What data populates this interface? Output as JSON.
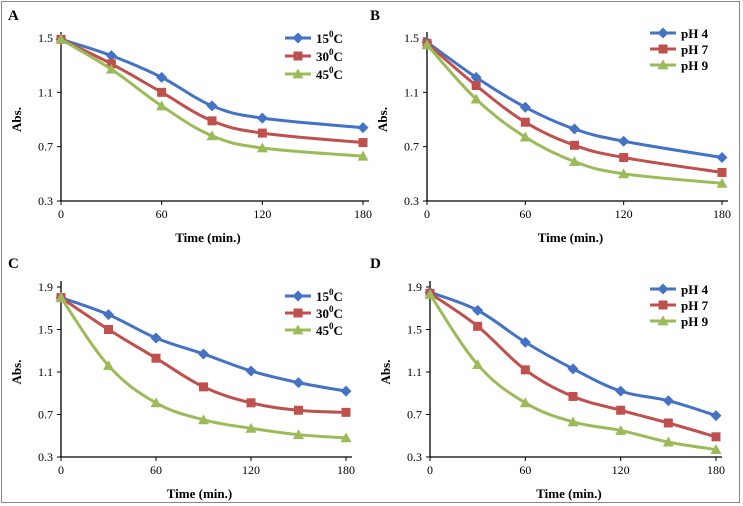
{
  "chart_data": [
    {
      "type": "line",
      "panel_label": "A",
      "xlabel": "Time (min.)",
      "ylabel": "Abs.",
      "x": [
        0,
        30,
        60,
        90,
        120,
        180
      ],
      "xticks": [
        "0",
        "60",
        "120",
        "180"
      ],
      "xlim": [
        0,
        180
      ],
      "yticks": [
        "0.3",
        "0.7",
        "1.1",
        "1.5"
      ],
      "ylim": [
        0.3,
        1.5
      ],
      "legend_placement": "top-right",
      "series": [
        {
          "name": "15",
          "unit": "C",
          "superscript": "0",
          "color": "#4472C4",
          "marker": "diamond",
          "values": [
            1.49,
            1.37,
            1.21,
            1.0,
            0.91,
            0.84
          ]
        },
        {
          "name": "30",
          "unit": "C",
          "superscript": "0",
          "color": "#C0504D",
          "marker": "square",
          "values": [
            1.49,
            1.31,
            1.1,
            0.89,
            0.8,
            0.73
          ]
        },
        {
          "name": "45",
          "unit": "C",
          "superscript": "0",
          "color": "#9BBB59",
          "marker": "triangle",
          "values": [
            1.49,
            1.27,
            1.0,
            0.78,
            0.69,
            0.63
          ]
        }
      ]
    },
    {
      "type": "line",
      "panel_label": "B",
      "xlabel": "Time (min.)",
      "ylabel": "Abs.",
      "x": [
        0,
        30,
        60,
        90,
        120,
        180
      ],
      "xticks": [
        "0",
        "60",
        "120",
        "180"
      ],
      "xlim": [
        0,
        180
      ],
      "yticks": [
        "0.3",
        "0.7",
        "1.1",
        "1.5"
      ],
      "ylim": [
        0.3,
        1.5
      ],
      "legend_placement": "top-right",
      "series": [
        {
          "name": "pH 4",
          "color": "#4472C4",
          "marker": "diamond",
          "values": [
            1.47,
            1.21,
            0.99,
            0.83,
            0.74,
            0.62
          ]
        },
        {
          "name": "pH 7",
          "color": "#C0504D",
          "marker": "square",
          "values": [
            1.46,
            1.15,
            0.88,
            0.71,
            0.62,
            0.51
          ]
        },
        {
          "name": "pH 9",
          "color": "#9BBB59",
          "marker": "triangle",
          "values": [
            1.45,
            1.05,
            0.77,
            0.59,
            0.5,
            0.43
          ]
        }
      ]
    },
    {
      "type": "line",
      "panel_label": "C",
      "xlabel": "Time (min.)",
      "ylabel": "Abs.",
      "x": [
        0,
        30,
        60,
        90,
        120,
        150,
        180
      ],
      "xticks": [
        "0",
        "60",
        "120",
        "180"
      ],
      "xlim": [
        0,
        180
      ],
      "yticks": [
        "0.3",
        "0.7",
        "1.1",
        "1.5",
        "1.9"
      ],
      "ylim": [
        0.3,
        1.9
      ],
      "legend_placement": "top-right",
      "series": [
        {
          "name": "15",
          "unit": "C",
          "superscript": "0",
          "color": "#4472C4",
          "marker": "diamond",
          "values": [
            1.8,
            1.64,
            1.42,
            1.27,
            1.11,
            1.0,
            0.92
          ]
        },
        {
          "name": "30",
          "unit": "C",
          "superscript": "0",
          "color": "#C0504D",
          "marker": "square",
          "values": [
            1.8,
            1.5,
            1.23,
            0.96,
            0.81,
            0.74,
            0.72
          ]
        },
        {
          "name": "45",
          "unit": "C",
          "superscript": "0",
          "color": "#9BBB59",
          "marker": "triangle",
          "values": [
            1.8,
            1.16,
            0.81,
            0.65,
            0.57,
            0.51,
            0.48
          ]
        }
      ]
    },
    {
      "type": "line",
      "panel_label": "D",
      "xlabel": "Time (min.)",
      "ylabel": "Abs.",
      "x": [
        0,
        30,
        60,
        90,
        120,
        150,
        180
      ],
      "xticks": [
        "0",
        "60",
        "120",
        "180"
      ],
      "xlim": [
        0,
        180
      ],
      "yticks": [
        "0.3",
        "0.7",
        "1.1",
        "1.5",
        "1.9"
      ],
      "ylim": [
        0.3,
        1.9
      ],
      "legend_placement": "top-right",
      "series": [
        {
          "name": "pH 4",
          "color": "#4472C4",
          "marker": "diamond",
          "values": [
            1.85,
            1.68,
            1.38,
            1.13,
            0.92,
            0.83,
            0.69
          ]
        },
        {
          "name": "pH 7",
          "color": "#C0504D",
          "marker": "square",
          "values": [
            1.84,
            1.53,
            1.12,
            0.87,
            0.74,
            0.62,
            0.49
          ]
        },
        {
          "name": "pH 9",
          "color": "#9BBB59",
          "marker": "triangle",
          "values": [
            1.83,
            1.17,
            0.81,
            0.63,
            0.55,
            0.44,
            0.37
          ]
        }
      ]
    }
  ]
}
